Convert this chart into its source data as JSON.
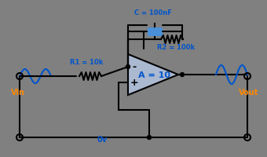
{
  "bg_color": "#808080",
  "wire_color": "#000000",
  "component_color": "#000000",
  "opamp_fill": "#aab8d0",
  "opamp_edge": "#000000",
  "cap_fill": "#4a90d9",
  "resistor_color": "#c0c0c0",
  "signal_color": "#0055cc",
  "text_color": "#0055cc",
  "label_color": "#ff8800",
  "title": "",
  "R1_label": "R1 = 10k",
  "R2_label": "R2 = 100k",
  "C_label": "C = 100nF",
  "A_label": "A = 10",
  "Vin_label": "Vin",
  "Vout_label": "Vout",
  "gnd_label": "0v"
}
